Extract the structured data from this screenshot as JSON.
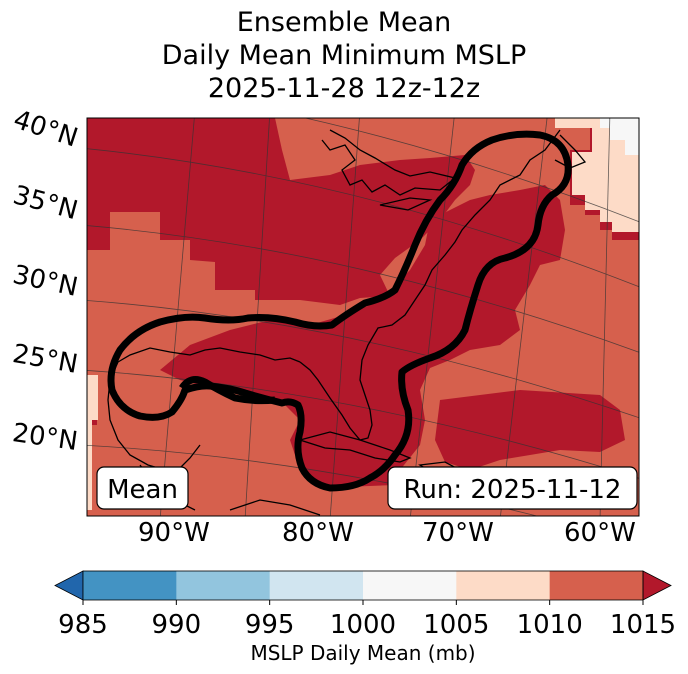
{
  "title": {
    "line1": "Ensemble Mean",
    "line2": "Daily Mean Minimum MSLP",
    "line3": "2025-11-28 12z-12z"
  },
  "map": {
    "lat_labels": [
      "40°N",
      "35°N",
      "30°N",
      "25°N",
      "20°N"
    ],
    "lon_labels": [
      "90°W",
      "80°W",
      "70°W",
      "60°W"
    ],
    "box_left_label": "Mean",
    "box_right_label": "Run: 2025-11-12",
    "field_colors": {
      "1015_plus": "#b2182b",
      "1010_1015": "#d6604d",
      "1005_1010": "#fddbc7",
      "1000_1005": "#f7f7f7"
    }
  },
  "colorbar": {
    "label": "MSLP Daily Mean (mb)",
    "ticks": [
      "985",
      "990",
      "995",
      "1000",
      "1005",
      "1010",
      "1015"
    ],
    "colors": [
      "#4393c3",
      "#92c5de",
      "#d1e5f0",
      "#f7f7f7",
      "#fddbc7",
      "#d6604d"
    ],
    "under_color": "#2166ac",
    "over_color": "#b2182b"
  }
}
